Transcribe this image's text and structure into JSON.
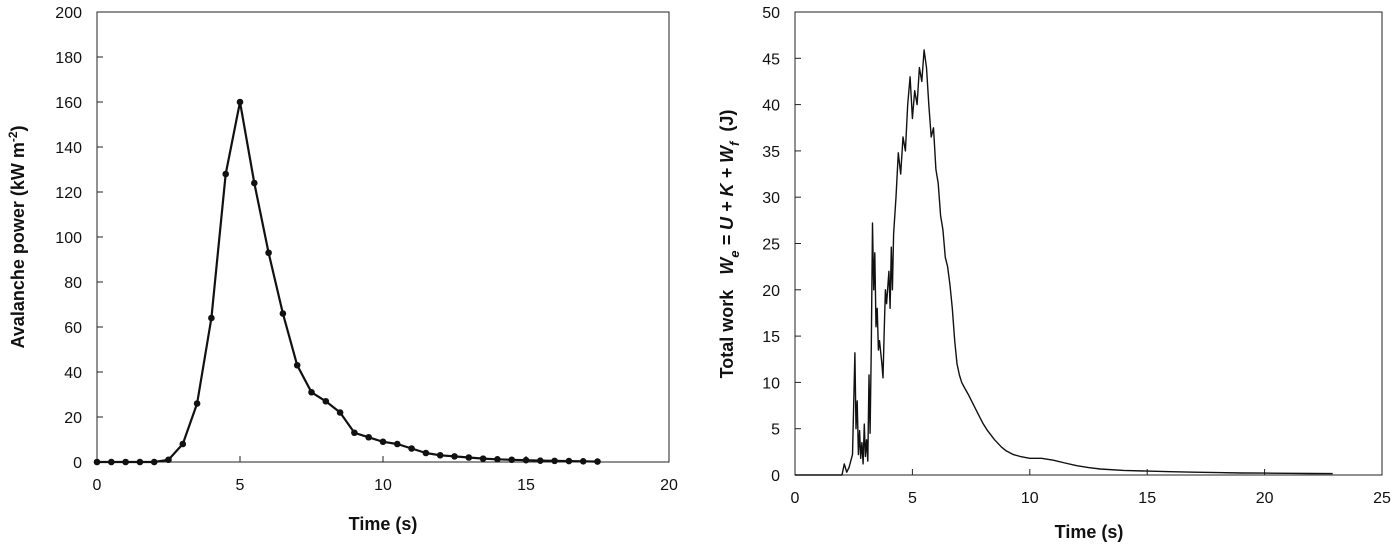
{
  "chart_data": [
    {
      "type": "line",
      "title": "",
      "xlabel": "Time  (s)",
      "ylabel_parts": {
        "main": "Avalanche power (kW m",
        "sup": "-2",
        "end": ")"
      },
      "xlim": [
        0,
        20
      ],
      "ylim": [
        0,
        200
      ],
      "x_ticks": [
        0,
        5,
        10,
        15,
        20
      ],
      "y_ticks": [
        0,
        20,
        40,
        60,
        80,
        100,
        120,
        140,
        160,
        180,
        200
      ],
      "grid": false,
      "markers": true,
      "series": [
        {
          "x": [
            0,
            0.5,
            1,
            1.5,
            2,
            2.5,
            3,
            3.5,
            4,
            4.5,
            5,
            5.5,
            6,
            6.5,
            7,
            7.5,
            8,
            8.5,
            9,
            9.5,
            10,
            10.5,
            11,
            11.5,
            12,
            12.5,
            13,
            13.5,
            14,
            14.5,
            15,
            15.5,
            16,
            16.5,
            17,
            17.5
          ],
          "y": [
            0,
            0,
            0,
            0,
            0,
            1,
            8,
            26,
            64,
            128,
            160,
            124,
            93,
            66,
            43,
            31,
            27,
            22,
            13,
            11,
            9,
            8,
            6,
            4,
            3,
            2.5,
            2,
            1.5,
            1.2,
            1,
            0.8,
            0.6,
            0.5,
            0.4,
            0.3,
            0.2
          ]
        }
      ]
    },
    {
      "type": "line",
      "title": "",
      "xlabel": "Time  (s)",
      "ylabel_parts": {
        "prefix": "Total work   ",
        "formula": [
          "W",
          "e",
          " = U + K + W",
          "f"
        ],
        "suffix": "  (J)"
      },
      "xlim": [
        0,
        25
      ],
      "ylim": [
        0,
        50
      ],
      "x_ticks": [
        0,
        5,
        10,
        15,
        20,
        25
      ],
      "y_ticks": [
        0,
        5,
        10,
        15,
        20,
        25,
        30,
        35,
        40,
        45,
        50
      ],
      "grid": false,
      "markers": false,
      "series": [
        {
          "x": [
            0,
            2.0,
            2.1,
            2.2,
            2.3,
            2.45,
            2.55,
            2.6,
            2.65,
            2.7,
            2.75,
            2.8,
            2.85,
            2.9,
            2.95,
            3.0,
            3.05,
            3.1,
            3.15,
            3.2,
            3.25,
            3.3,
            3.35,
            3.4,
            3.45,
            3.5,
            3.55,
            3.6,
            3.7,
            3.75,
            3.8,
            3.85,
            3.9,
            4.0,
            4.05,
            4.1,
            4.15,
            4.2,
            4.3,
            4.4,
            4.5,
            4.6,
            4.7,
            4.8,
            4.9,
            5.0,
            5.1,
            5.2,
            5.3,
            5.4,
            5.5,
            5.6,
            5.7,
            5.8,
            5.9,
            6.0,
            6.1,
            6.2,
            6.3,
            6.4,
            6.5,
            6.6,
            6.7,
            6.8,
            6.9,
            7.0,
            7.1,
            7.2,
            7.4,
            7.6,
            7.8,
            8.0,
            8.2,
            8.5,
            8.8,
            9.0,
            9.3,
            9.6,
            10.0,
            10.5,
            11.0,
            11.5,
            12.0,
            12.5,
            13.0,
            14.0,
            15.0,
            16.0,
            17.0,
            18.0,
            19.0,
            20.0,
            21.0,
            22.0,
            22.9
          ],
          "y": [
            0,
            0,
            1.2,
            0.3,
            0.8,
            2.2,
            13.2,
            5.0,
            8.0,
            2.2,
            4.8,
            1.8,
            3.5,
            1.2,
            5.5,
            2.0,
            3.8,
            1.5,
            10.8,
            4.5,
            14.0,
            27.2,
            20.0,
            24.0,
            16.0,
            18.0,
            13.5,
            14.5,
            12.0,
            10.5,
            15.5,
            20.0,
            18.5,
            22.0,
            18.0,
            24.6,
            20.0,
            26.0,
            30.0,
            34.8,
            32.5,
            36.5,
            35.0,
            40.0,
            43.0,
            38.5,
            41.5,
            40.0,
            44.0,
            42.5,
            45.9,
            44.0,
            40.0,
            36.5,
            37.5,
            33.0,
            31.5,
            28.0,
            26.5,
            23.5,
            22.5,
            20.5,
            18.0,
            14.5,
            12.0,
            10.8,
            10.0,
            9.5,
            8.6,
            7.6,
            6.6,
            5.6,
            4.8,
            3.8,
            3.0,
            2.6,
            2.2,
            2.0,
            1.8,
            1.8,
            1.6,
            1.3,
            1.0,
            0.8,
            0.65,
            0.5,
            0.42,
            0.36,
            0.3,
            0.26,
            0.22,
            0.2,
            0.18,
            0.16,
            0.15
          ]
        }
      ]
    }
  ]
}
